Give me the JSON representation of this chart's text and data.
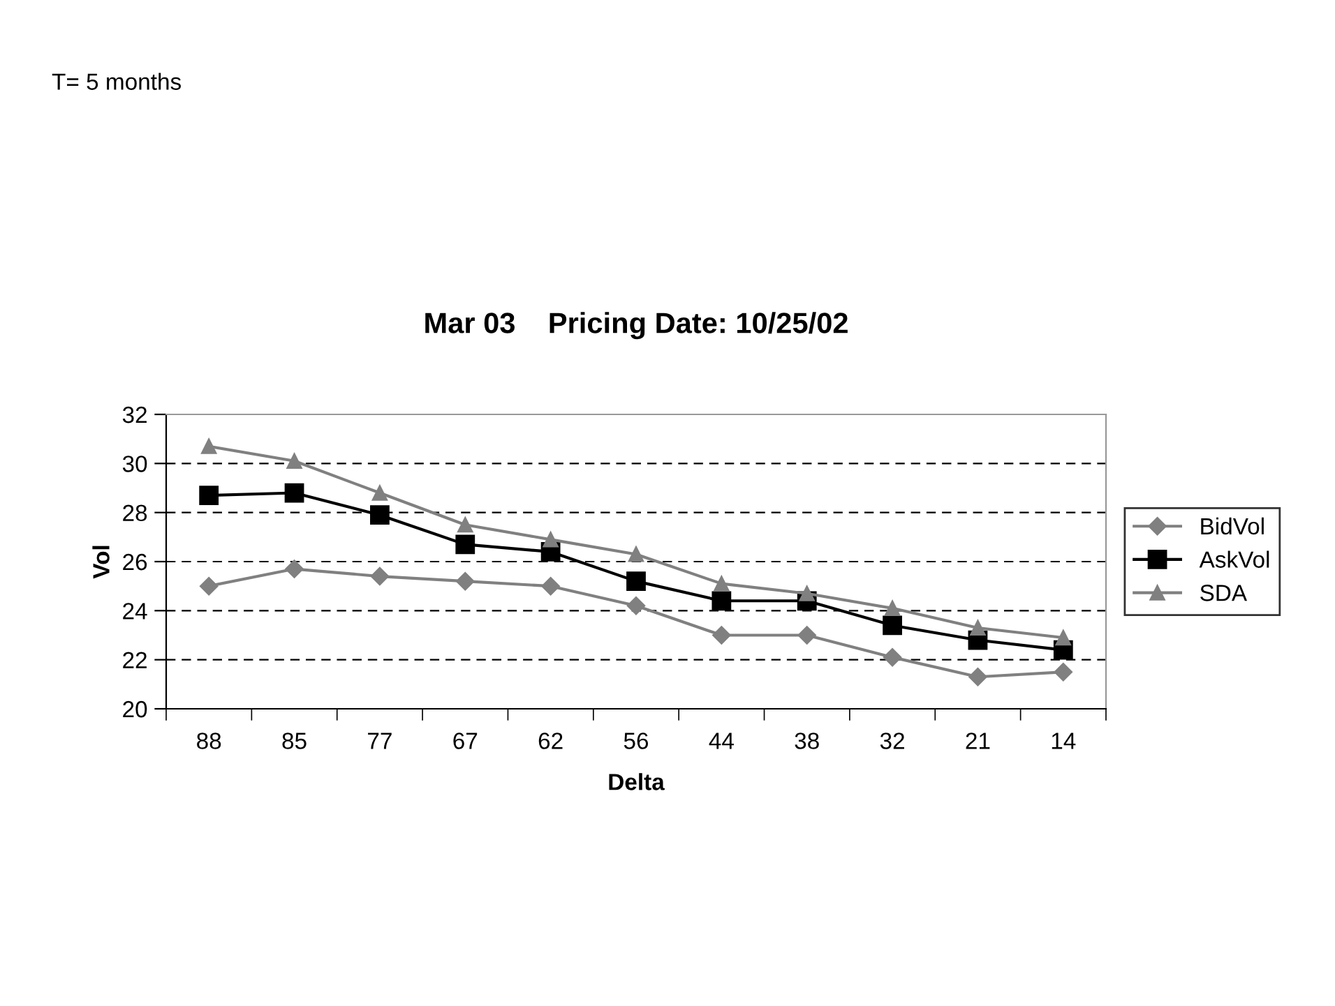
{
  "chart_data": {
    "type": "line",
    "title": "Mar 03    Pricing Date: 10/25/02",
    "xlabel": "Delta",
    "ylabel": "Vol",
    "annotations": [
      "T= 5 months"
    ],
    "categories": [
      "88",
      "85",
      "77",
      "67",
      "62",
      "56",
      "44",
      "38",
      "32",
      "21",
      "14"
    ],
    "series": [
      {
        "name": "BidVol",
        "color": "#808080",
        "marker": "diamond",
        "values": [
          25.0,
          25.7,
          25.4,
          25.2,
          25.0,
          24.2,
          23.0,
          23.0,
          22.1,
          21.3,
          21.5
        ]
      },
      {
        "name": "AskVol",
        "color": "#000000",
        "marker": "square",
        "values": [
          28.7,
          28.8,
          27.9,
          26.7,
          26.4,
          25.2,
          24.4,
          24.4,
          23.4,
          22.8,
          22.4
        ]
      },
      {
        "name": "SDA",
        "color": "#808080",
        "marker": "triangle",
        "values": [
          30.7,
          30.1,
          28.8,
          27.5,
          26.9,
          26.3,
          25.1,
          24.7,
          24.1,
          23.3,
          22.9
        ]
      }
    ],
    "ylim": [
      20,
      32
    ],
    "yticks": [
      20,
      22,
      24,
      26,
      28,
      30,
      32
    ],
    "grid": "y",
    "legend": "right",
    "line_style": "solid"
  }
}
